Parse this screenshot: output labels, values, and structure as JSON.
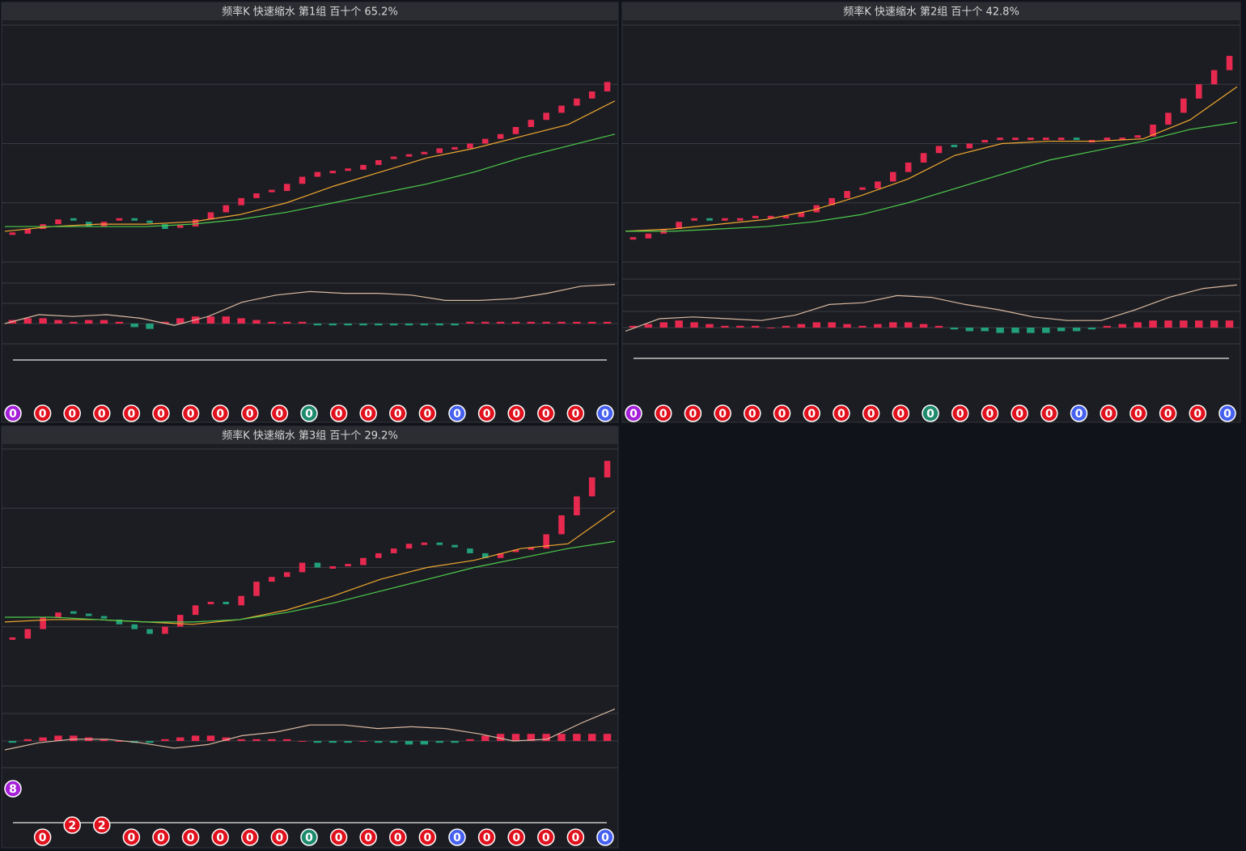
{
  "chart_data": [
    {
      "type": "candlestick",
      "title": "频率K  快速缩水  第1组  百十个  65.2%",
      "ylim": [
        0,
        100
      ],
      "closes": [
        12,
        14,
        16,
        18,
        17,
        15,
        17,
        18,
        17,
        16,
        14,
        15,
        18,
        21,
        24,
        27,
        29,
        30,
        33,
        36,
        38,
        38,
        39,
        41,
        43,
        44,
        45,
        46,
        48,
        48,
        50,
        52,
        54,
        57,
        60,
        63,
        66,
        69,
        72,
        76
      ],
      "ma_fast": [
        13,
        15,
        16,
        16,
        17,
        20,
        25,
        32,
        38,
        44,
        48,
        53,
        58,
        68
      ],
      "ma_slow": [
        15,
        15,
        15,
        15,
        16,
        18,
        21,
        25,
        29,
        33,
        38,
        44,
        49,
        54
      ],
      "macd": [
        0.2,
        0.3,
        0.3,
        0.2,
        0.1,
        0.2,
        0.2,
        0.1,
        -0.2,
        -0.3,
        0.1,
        0.3,
        0.4,
        0.4,
        0.4,
        0.3,
        0.2,
        0.1,
        0.1,
        0.1,
        -0.1,
        -0.1,
        -0.1,
        -0.1,
        -0.1,
        -0.1,
        -0.1,
        -0.1,
        -0.1,
        -0.1,
        0.1,
        0.1,
        0.1,
        0.1,
        0.1,
        0.1,
        0.1,
        0.1,
        0.1,
        0.1
      ],
      "dif": [
        0,
        0.5,
        0.4,
        0.5,
        0.3,
        -0.1,
        0.4,
        1.2,
        1.6,
        1.8,
        1.7,
        1.7,
        1.6,
        1.3,
        1.3,
        1.4,
        1.7,
        2.1,
        2.2
      ],
      "counts": [
        0,
        0,
        0,
        0,
        0,
        0,
        0,
        0,
        0,
        0,
        0,
        0,
        0,
        0,
        0,
        0,
        0,
        0,
        0,
        0,
        0
      ],
      "count_colors": [
        "#a51fd8",
        "#e0101c",
        "#e0101c",
        "#e0101c",
        "#e0101c",
        "#e0101c",
        "#e0101c",
        "#e0101c",
        "#e0101c",
        "#e0101c",
        "#1d8a6c",
        "#e0101c",
        "#e0101c",
        "#e0101c",
        "#e0101c",
        "#4660f0",
        "#e0101c",
        "#e0101c",
        "#e0101c",
        "#e0101c",
        "#4660f0"
      ]
    },
    {
      "type": "candlestick",
      "title": "频率K  快速缩水  第2组  百十个  42.8%",
      "ylim": [
        0,
        100
      ],
      "closes": [
        10,
        12,
        14,
        17,
        18,
        17,
        18,
        18,
        19,
        19,
        19,
        21,
        24,
        27,
        30,
        31,
        34,
        38,
        42,
        46,
        49,
        48,
        50,
        51,
        52,
        52,
        52,
        52,
        52,
        51,
        51,
        52,
        52,
        53,
        58,
        63,
        69,
        75,
        81,
        87
      ],
      "ma_fast": [
        13,
        14,
        16,
        18,
        22,
        28,
        35,
        45,
        50,
        51,
        51,
        52,
        60,
        74
      ],
      "ma_slow": [
        13,
        13,
        14,
        15,
        17,
        20,
        25,
        31,
        37,
        43,
        47,
        51,
        56,
        59
      ],
      "macd": [
        0.1,
        0.2,
        0.3,
        0.4,
        0.3,
        0.2,
        0.1,
        0.1,
        0.1,
        0.0,
        0.1,
        0.2,
        0.3,
        0.3,
        0.2,
        0.1,
        0.2,
        0.3,
        0.3,
        0.2,
        0.1,
        -0.1,
        -0.2,
        -0.2,
        -0.3,
        -0.3,
        -0.3,
        -0.3,
        -0.2,
        -0.2,
        -0.1,
        0.1,
        0.2,
        0.3,
        0.4,
        0.4,
        0.4,
        0.4,
        0.4,
        0.4
      ],
      "dif": [
        -0.2,
        0.5,
        0.6,
        0.5,
        0.4,
        0.7,
        1.3,
        1.4,
        1.8,
        1.7,
        1.3,
        1.0,
        0.6,
        0.4,
        0.4,
        1.0,
        1.7,
        2.2,
        2.4
      ],
      "counts": [
        0,
        0,
        0,
        0,
        0,
        0,
        0,
        0,
        0,
        0,
        0,
        0,
        0,
        0,
        0,
        0,
        0,
        0,
        0,
        0,
        0
      ],
      "count_colors": [
        "#a51fd8",
        "#e0101c",
        "#e0101c",
        "#e0101c",
        "#e0101c",
        "#e0101c",
        "#e0101c",
        "#e0101c",
        "#e0101c",
        "#e0101c",
        "#1d8a6c",
        "#e0101c",
        "#e0101c",
        "#e0101c",
        "#e0101c",
        "#4660f0",
        "#e0101c",
        "#e0101c",
        "#e0101c",
        "#e0101c",
        "#4660f0"
      ]
    },
    {
      "type": "candlestick",
      "title": "频率K  快速缩水  第3组  百十个  29.2%",
      "ylim": [
        0,
        100
      ],
      "closes": [
        20,
        24,
        29,
        31,
        30,
        29,
        28,
        26,
        24,
        22,
        25,
        30,
        34,
        35,
        34,
        38,
        44,
        46,
        48,
        52,
        50,
        50,
        51,
        54,
        56,
        58,
        60,
        60,
        59,
        58,
        56,
        54,
        56,
        57,
        58,
        64,
        72,
        80,
        88,
        95
      ],
      "ma_fast": [
        27,
        28,
        28,
        27,
        26,
        28,
        32,
        38,
        45,
        50,
        53,
        58,
        60,
        74
      ],
      "ma_slow": [
        29,
        29,
        28,
        27,
        27,
        28,
        31,
        35,
        40,
        45,
        50,
        54,
        58,
        61
      ],
      "macd": [
        -0.1,
        0.1,
        0.2,
        0.3,
        0.3,
        0.2,
        0.1,
        0.0,
        -0.1,
        -0.1,
        0.1,
        0.2,
        0.3,
        0.3,
        0.2,
        0.1,
        0.1,
        0.1,
        0.1,
        0.0,
        -0.1,
        -0.1,
        -0.1,
        0,
        -0.1,
        -0.1,
        -0.2,
        -0.2,
        -0.1,
        -0.1,
        0.1,
        0.3,
        0.4,
        0.4,
        0.4,
        0.4,
        0.4,
        0.4,
        0.4,
        0.4
      ],
      "dif": [
        -0.5,
        -0.1,
        0.1,
        0.1,
        -0.1,
        -0.4,
        -0.2,
        0.3,
        0.5,
        0.9,
        0.9,
        0.7,
        0.8,
        0.7,
        0.4,
        0.0,
        0.1,
        1.0,
        1.8
      ],
      "counts": [
        8,
        0,
        2,
        2,
        0,
        0,
        0,
        0,
        0,
        0,
        0,
        0,
        0,
        0,
        0,
        0,
        0,
        0,
        0,
        0,
        0
      ],
      "count_colors": [
        "#a51fd8",
        "#e0101c",
        "#e0101c",
        "#e0101c",
        "#e0101c",
        "#e0101c",
        "#e0101c",
        "#e0101c",
        "#e0101c",
        "#e0101c",
        "#1d8a6c",
        "#e0101c",
        "#e0101c",
        "#e0101c",
        "#e0101c",
        "#4660f0",
        "#e0101c",
        "#e0101c",
        "#e0101c",
        "#e0101c",
        "#4660f0"
      ]
    }
  ]
}
